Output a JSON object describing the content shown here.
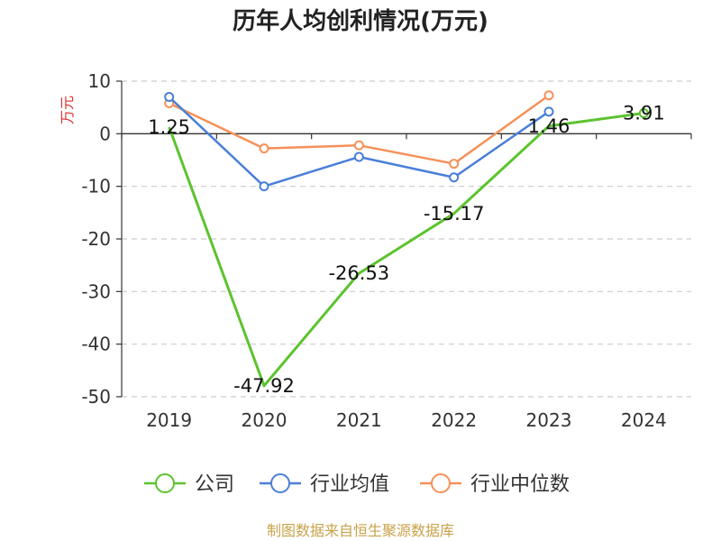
{
  "chart_data": {
    "type": "line",
    "title": "历年人均创利情况(万元)",
    "ylabel": "万元",
    "source": "制图数据来自恒生聚源数据库",
    "categories": [
      "2019",
      "2020",
      "2021",
      "2022",
      "2023",
      "2024"
    ],
    "ylim": [
      -50,
      10
    ],
    "yticks": [
      10,
      0,
      -10,
      -20,
      -30,
      -40,
      -50
    ],
    "grid": true,
    "legend_position": "bottom",
    "series": [
      {
        "name": "公司",
        "color": "#5cc32e",
        "values": [
          1.25,
          -47.92,
          -26.53,
          -15.17,
          1.46,
          3.91
        ],
        "labels": [
          "1.25",
          "-47.92",
          "-26.53",
          "-15.17",
          "1.46",
          "3.91"
        ]
      },
      {
        "name": "行业均值",
        "color": "#4a7fd8",
        "values": [
          7.0,
          -10.0,
          -4.4,
          -8.3,
          4.2,
          null
        ]
      },
      {
        "name": "行业中位数",
        "color": "#f5915a",
        "values": [
          5.8,
          -2.8,
          -2.2,
          -5.7,
          7.3,
          null
        ]
      }
    ]
  }
}
